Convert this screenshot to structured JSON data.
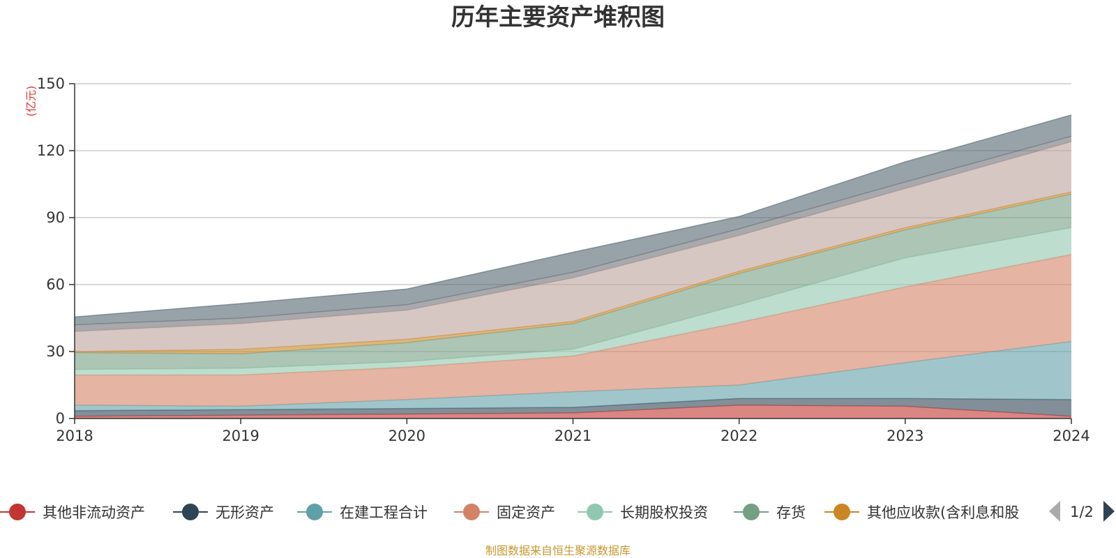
{
  "chart_data": {
    "type": "area",
    "stacked": true,
    "title": "历年主要资产堆积图",
    "unit_label": "(亿元)",
    "x": [
      "2018",
      "2019",
      "2020",
      "2021",
      "2022",
      "2023",
      "2024"
    ],
    "ylim": [
      0,
      150
    ],
    "yticks": [
      0,
      30,
      60,
      90,
      120,
      150
    ],
    "grid": true,
    "legend_position": "bottom",
    "series": [
      {
        "name": "其他非流动资产",
        "color": "#c23531",
        "values": [
          1.0,
          1.5,
          2.0,
          2.5,
          6.0,
          5.5,
          1.0
        ]
      },
      {
        "name": "无形资产",
        "color": "#2f4554",
        "values": [
          2.5,
          2.5,
          2.5,
          2.5,
          3.0,
          3.5,
          7.5
        ]
      },
      {
        "name": "在建工程合计",
        "color": "#61a0a8",
        "values": [
          2.5,
          1.5,
          4.0,
          7.0,
          6.0,
          16.0,
          26.0
        ]
      },
      {
        "name": "固定资产",
        "color": "#d48265",
        "values": [
          13.5,
          14.0,
          14.5,
          16.0,
          28.0,
          34.0,
          39.0
        ]
      },
      {
        "name": "长期股权投资",
        "color": "#91c7ae",
        "values": [
          2.5,
          3.0,
          2.5,
          3.0,
          8.0,
          13.0,
          12.0
        ]
      },
      {
        "name": "存货",
        "color": "#749f83",
        "values": [
          7.5,
          6.5,
          8.5,
          11.5,
          14.0,
          12.5,
          15.0
        ]
      },
      {
        "name": "其他应收款(含利息和股利)",
        "color": "#ca8622",
        "values": [
          0.5,
          2.0,
          1.5,
          1.0,
          1.0,
          1.0,
          1.0
        ]
      },
      {
        "name": "",
        "color": "#bda29a",
        "values": [
          9.0,
          11.5,
          13.0,
          19.5,
          16.0,
          17.5,
          22.5
        ]
      },
      {
        "name": "",
        "color": "#6e7074",
        "values": [
          3.0,
          2.5,
          2.5,
          2.5,
          3.0,
          3.0,
          2.5
        ]
      },
      {
        "name": "",
        "color": "#546570",
        "values": [
          3.5,
          6.5,
          7.0,
          9.0,
          5.5,
          9.0,
          9.5
        ]
      }
    ]
  },
  "legend": {
    "visible_count": 7,
    "page_indicator": "1/2",
    "last_label_display": "其他应收款(含利息和股"
  },
  "source_text": "制图数据来自恒生聚源数据库"
}
